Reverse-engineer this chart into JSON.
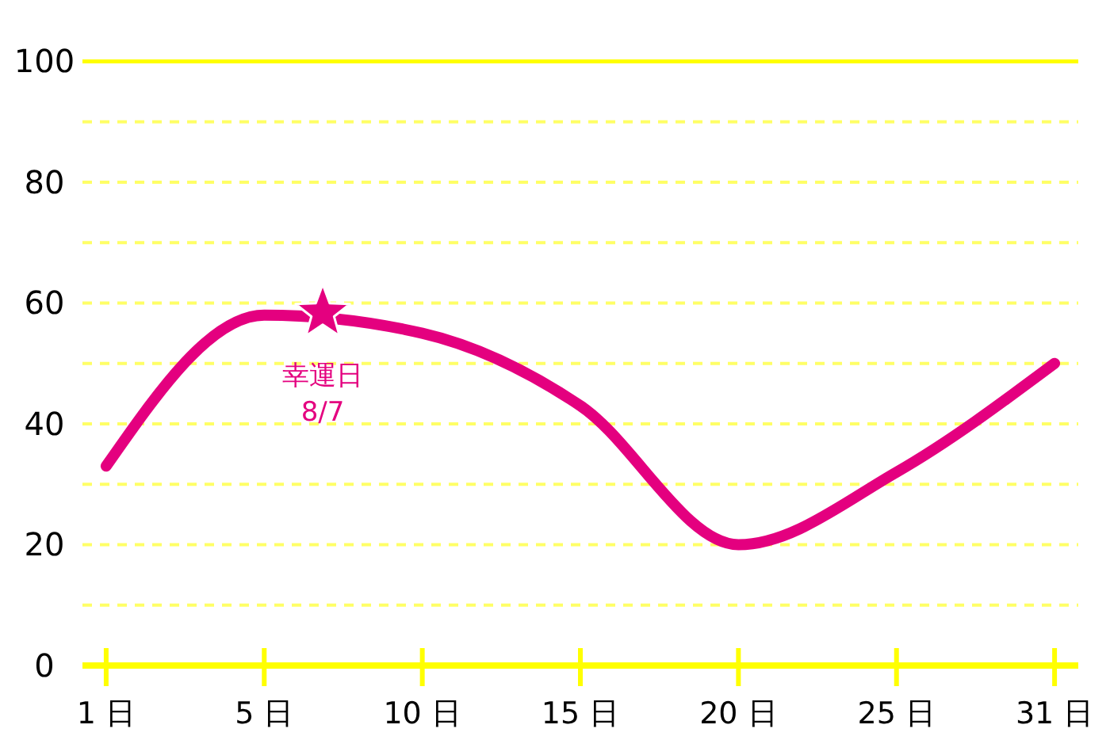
{
  "chart_data": {
    "type": "line",
    "categories": [
      "1 日",
      "5 日",
      "10 日",
      "15 日",
      "20 日",
      "25 日",
      "31 日"
    ],
    "series": [
      {
        "color": "#e4007f",
        "values": [
          33,
          58,
          55,
          43,
          20,
          32,
          50
        ]
      }
    ],
    "ylim": [
      0,
      100
    ],
    "yticks": [
      0,
      {
        "value": 10,
        "label": null
      },
      20,
      {
        "value": 30,
        "label": null
      },
      40,
      {
        "value": 50,
        "label": null
      },
      60,
      {
        "value": 70,
        "label": null
      },
      80,
      {
        "value": 90,
        "label": null
      },
      100
    ],
    "grid": "y",
    "line_style": "solid",
    "annotations": [
      "幸運日\n8/7"
    ]
  }
}
